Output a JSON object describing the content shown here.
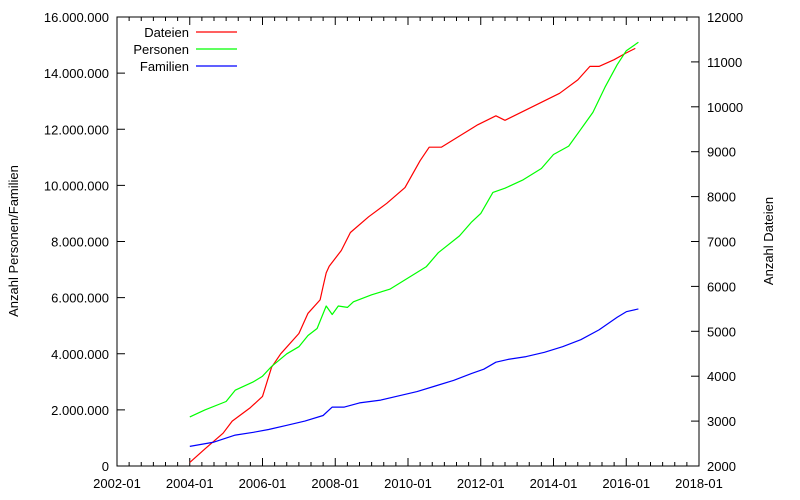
{
  "chart_data": {
    "type": "line",
    "title": "",
    "ylabel": "Anzahl Personen/Familien",
    "y2label": "Anzahl Dateien",
    "x_ticks": [
      "2002-01",
      "2004-01",
      "2006-01",
      "2008-01",
      "2010-01",
      "2012-01",
      "2014-01",
      "2016-01",
      "2018-01"
    ],
    "xlim": [
      "2002-01",
      "2018-01"
    ],
    "y_left_ticks": [
      "0",
      "2.000.000",
      "4.000.000",
      "6.000.000",
      "8.000.000",
      "10.000.000",
      "12.000.000",
      "14.000.000",
      "16.000.000"
    ],
    "ylim_left": [
      0,
      16000000
    ],
    "y_right_ticks": [
      "2000",
      "3000",
      "4000",
      "5000",
      "6000",
      "7000",
      "8000",
      "9000",
      "10000",
      "11000",
      "12000"
    ],
    "ylim_right": [
      2000,
      12000
    ],
    "legend_position": "top-left",
    "grid": false,
    "series": [
      {
        "name": "Dateien",
        "axis": "right",
        "color": "#ff0000",
        "points": [
          [
            "2004-01",
            2080
          ],
          [
            "2004-06",
            2380
          ],
          [
            "2004-12",
            2730
          ],
          [
            "2005-03",
            3000
          ],
          [
            "2005-09",
            3300
          ],
          [
            "2006-01",
            3550
          ],
          [
            "2006-04",
            4200
          ],
          [
            "2006-07",
            4500
          ],
          [
            "2007-01",
            4950
          ],
          [
            "2007-04",
            5400
          ],
          [
            "2007-08",
            5700
          ],
          [
            "2007-09",
            6000
          ],
          [
            "2007-10",
            6300
          ],
          [
            "2007-11",
            6450
          ],
          [
            "2008-03",
            6800
          ],
          [
            "2008-06",
            7200
          ],
          [
            "2008-12",
            7550
          ],
          [
            "2009-06",
            7850
          ],
          [
            "2009-12",
            8200
          ],
          [
            "2010-05",
            8800
          ],
          [
            "2010-08",
            9100
          ],
          [
            "2010-12",
            9100
          ],
          [
            "2011-06",
            9350
          ],
          [
            "2011-12",
            9600
          ],
          [
            "2012-06",
            9800
          ],
          [
            "2012-09",
            9700
          ],
          [
            "2013-03",
            9900
          ],
          [
            "2013-09",
            10100
          ],
          [
            "2014-03",
            10300
          ],
          [
            "2014-09",
            10600
          ],
          [
            "2015-01",
            10900
          ],
          [
            "2015-04",
            10900
          ],
          [
            "2015-09",
            11050
          ],
          [
            "2016-01",
            11200
          ],
          [
            "2016-04",
            11300
          ]
        ]
      },
      {
        "name": "Personen",
        "axis": "left",
        "color": "#00ff00",
        "points": [
          [
            "2004-01",
            1750000
          ],
          [
            "2004-06",
            2000000
          ],
          [
            "2005-01",
            2300000
          ],
          [
            "2005-04",
            2700000
          ],
          [
            "2005-10",
            3000000
          ],
          [
            "2006-01",
            3200000
          ],
          [
            "2006-04",
            3550000
          ],
          [
            "2006-09",
            4000000
          ],
          [
            "2007-01",
            4250000
          ],
          [
            "2007-04",
            4650000
          ],
          [
            "2007-07",
            4900000
          ],
          [
            "2007-10",
            5700000
          ],
          [
            "2007-12",
            5400000
          ],
          [
            "2008-02",
            5700000
          ],
          [
            "2008-05",
            5650000
          ],
          [
            "2008-07",
            5850000
          ],
          [
            "2009-01",
            6100000
          ],
          [
            "2009-07",
            6300000
          ],
          [
            "2010-01",
            6700000
          ],
          [
            "2010-07",
            7100000
          ],
          [
            "2010-11",
            7600000
          ],
          [
            "2011-06",
            8200000
          ],
          [
            "2011-10",
            8700000
          ],
          [
            "2012-01",
            9000000
          ],
          [
            "2012-05",
            9750000
          ],
          [
            "2012-09",
            9900000
          ],
          [
            "2013-03",
            10200000
          ],
          [
            "2013-09",
            10600000
          ],
          [
            "2014-01",
            11100000
          ],
          [
            "2014-06",
            11400000
          ],
          [
            "2014-10",
            12000000
          ],
          [
            "2015-02",
            12600000
          ],
          [
            "2015-06",
            13500000
          ],
          [
            "2015-10",
            14300000
          ],
          [
            "2016-01",
            14800000
          ],
          [
            "2016-05",
            15100000
          ]
        ]
      },
      {
        "name": "Familien",
        "axis": "left",
        "color": "#0000ff",
        "points": [
          [
            "2004-01",
            700000
          ],
          [
            "2004-09",
            850000
          ],
          [
            "2005-04",
            1100000
          ],
          [
            "2005-10",
            1200000
          ],
          [
            "2006-03",
            1300000
          ],
          [
            "2006-09",
            1450000
          ],
          [
            "2007-03",
            1600000
          ],
          [
            "2007-09",
            1800000
          ],
          [
            "2007-12",
            2100000
          ],
          [
            "2008-04",
            2100000
          ],
          [
            "2008-09",
            2250000
          ],
          [
            "2009-04",
            2350000
          ],
          [
            "2009-10",
            2500000
          ],
          [
            "2010-04",
            2650000
          ],
          [
            "2010-10",
            2850000
          ],
          [
            "2011-04",
            3050000
          ],
          [
            "2011-10",
            3300000
          ],
          [
            "2012-02",
            3450000
          ],
          [
            "2012-06",
            3700000
          ],
          [
            "2012-10",
            3800000
          ],
          [
            "2013-04",
            3900000
          ],
          [
            "2013-10",
            4050000
          ],
          [
            "2014-04",
            4250000
          ],
          [
            "2014-10",
            4500000
          ],
          [
            "2015-04",
            4850000
          ],
          [
            "2015-10",
            5300000
          ],
          [
            "2016-01",
            5500000
          ],
          [
            "2016-05",
            5600000
          ]
        ]
      }
    ]
  }
}
